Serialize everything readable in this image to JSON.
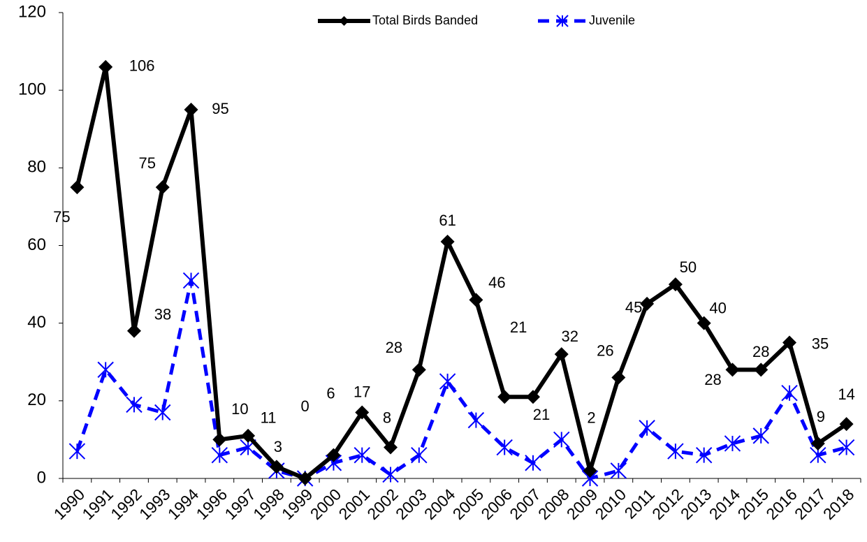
{
  "chart_data": {
    "type": "line",
    "categories": [
      "1990",
      "1991",
      "1992",
      "1993",
      "1994",
      "1996",
      "1997",
      "1998",
      "1999",
      "2000",
      "2001",
      "2002",
      "2003",
      "2004",
      "2005",
      "2006",
      "2007",
      "2008",
      "2009",
      "2010",
      "2011",
      "2012",
      "2013",
      "2014",
      "2015",
      "2016",
      "2017",
      "2018"
    ],
    "series": [
      {
        "name": "Total Birds Banded",
        "color": "#000000",
        "values": [
          75,
          106,
          38,
          75,
          95,
          10,
          11,
          3,
          0,
          6,
          17,
          8,
          28,
          61,
          46,
          21,
          21,
          32,
          2,
          26,
          45,
          50,
          40,
          28,
          28,
          35,
          9,
          14
        ]
      },
      {
        "name": "Juvenile",
        "color": "#0000ff",
        "values": [
          7,
          28,
          19,
          17,
          51,
          6,
          8,
          2,
          0,
          4,
          6,
          1,
          6,
          25,
          15,
          8,
          4,
          10,
          0,
          2,
          13,
          7,
          6,
          9,
          11,
          22,
          6,
          8
        ]
      }
    ],
    "ylim": [
      0,
      120
    ],
    "yticks": [
      0,
      20,
      40,
      60,
      80,
      100,
      120
    ],
    "legend": "top"
  }
}
